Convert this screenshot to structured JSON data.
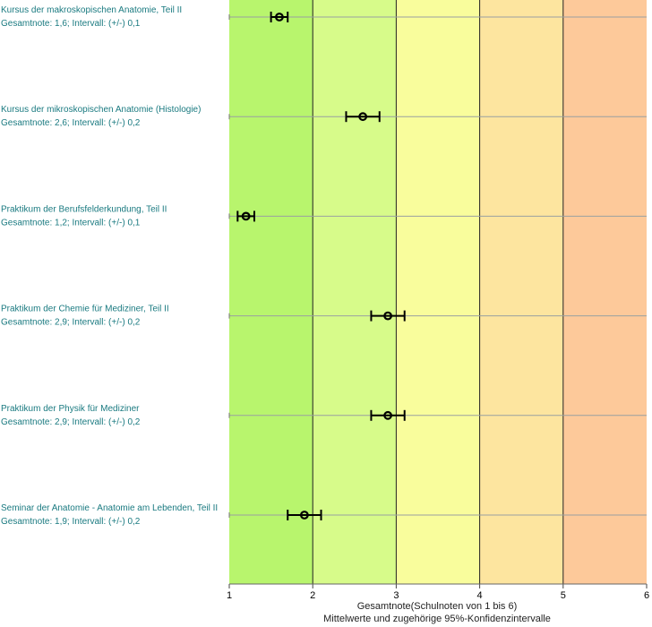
{
  "chart_data": {
    "type": "scatter",
    "subtype": "error-bar",
    "xlim": [
      1,
      6
    ],
    "x_ticks": [
      "1",
      "2",
      "3",
      "4",
      "5",
      "6"
    ],
    "xlabel": "Gesamtnote(Schulnoten von 1 bis 6)",
    "xlabel_sub": "Mittelwerte und zugehörige 95%-Konfidenzintervalle",
    "grid": "vertical",
    "background_bands": [
      {
        "from": 1,
        "to": 2,
        "color": "#b8f56d"
      },
      {
        "from": 2,
        "to": 3,
        "color": "#d7fb8a"
      },
      {
        "from": 3,
        "to": 4,
        "color": "#f9fd9c"
      },
      {
        "from": 4,
        "to": 5,
        "color": "#fde59f"
      },
      {
        "from": 5,
        "to": 6,
        "color": "#fdc99a"
      }
    ],
    "items": [
      {
        "title": "Kursus der makroskopischen Anatomie, Teil II",
        "detail": "Gesamtnote: 1,6;  Intervall: (+/-) 0,1",
        "mean": 1.6,
        "ci": 0.1
      },
      {
        "title": "Kursus der mikroskopischen Anatomie (Histologie)",
        "detail": "Gesamtnote: 2,6;  Intervall: (+/-) 0,2",
        "mean": 2.6,
        "ci": 0.2
      },
      {
        "title": "Praktikum der Berufsfelderkundung, Teil II",
        "detail": "Gesamtnote: 1,2;  Intervall: (+/-) 0,1",
        "mean": 1.2,
        "ci": 0.1
      },
      {
        "title": "Praktikum der Chemie für Mediziner, Teil II",
        "detail": "Gesamtnote: 2,9;  Intervall: (+/-) 0,2",
        "mean": 2.9,
        "ci": 0.2
      },
      {
        "title": "Praktikum der Physik für Mediziner",
        "detail": "Gesamtnote: 2,9;  Intervall: (+/-) 0,2",
        "mean": 2.9,
        "ci": 0.2
      },
      {
        "title": "Seminar der Anatomie - Anatomie am Lebenden, Teil II",
        "detail": "Gesamtnote: 1,9;  Intervall: (+/-) 0,2",
        "mean": 1.9,
        "ci": 0.2
      }
    ]
  }
}
